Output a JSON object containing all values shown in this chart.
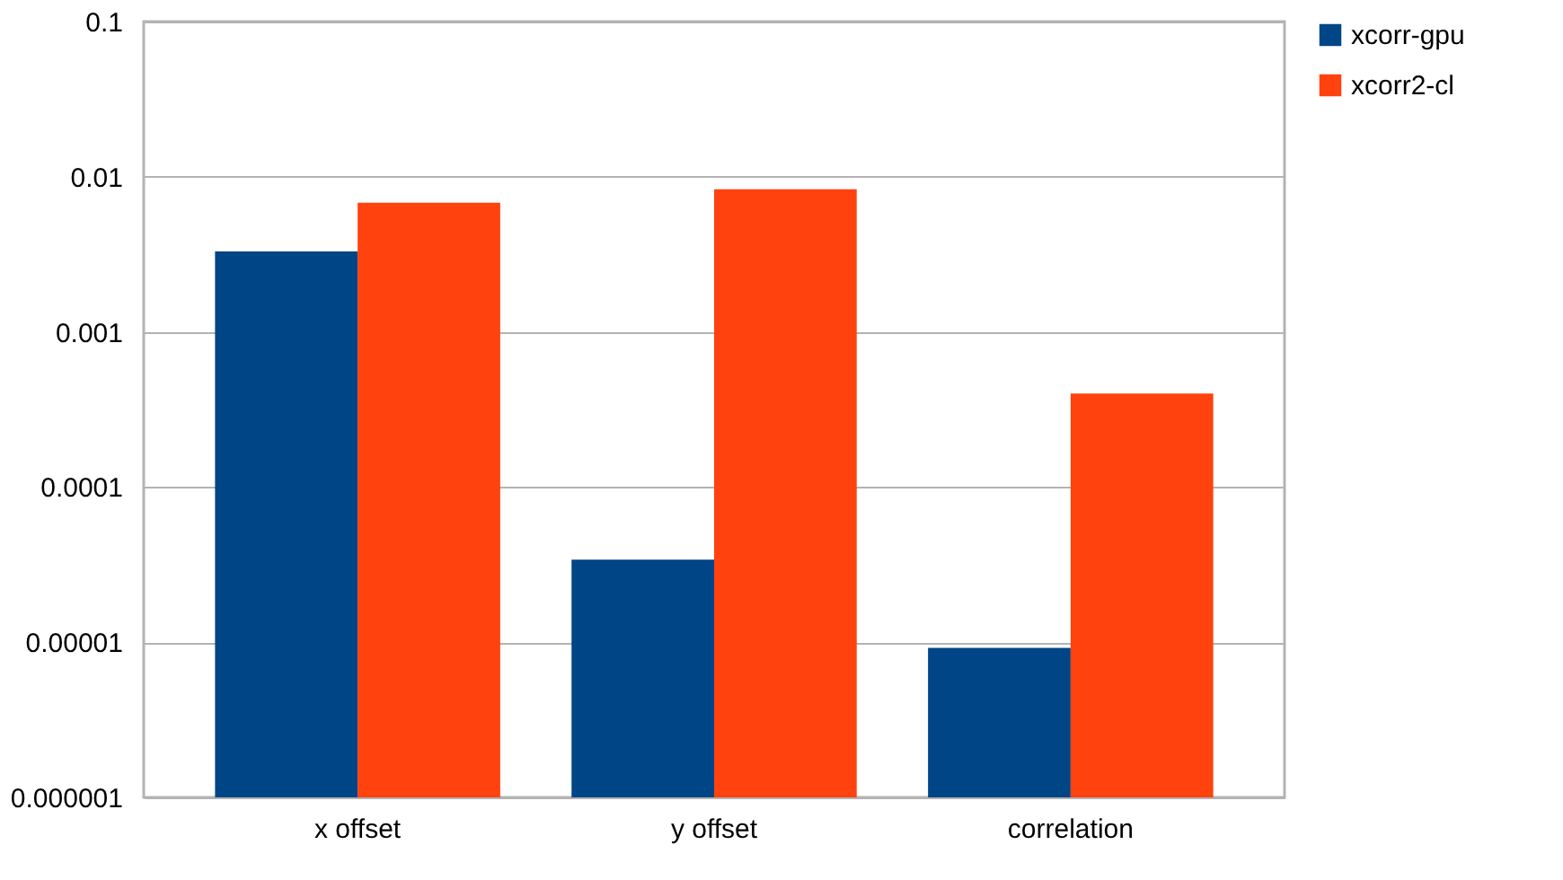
{
  "chart_data": {
    "type": "bar",
    "categories": [
      "x offset",
      "y offset",
      "correlation"
    ],
    "series": [
      {
        "name": "xcorr-gpu",
        "color": "#004586",
        "values": [
          0.0033,
          3.4e-05,
          9.2e-06
        ]
      },
      {
        "name": "xcorr2-cl",
        "color": "#ff420e",
        "values": [
          0.0068,
          0.0083,
          0.0004
        ]
      }
    ],
    "log": true,
    "ylim": [
      1e-06,
      0.1
    ],
    "yticks": [
      {
        "value": 1e-06,
        "label": "0.000001"
      },
      {
        "value": 1e-05,
        "label": "0.00001"
      },
      {
        "value": 0.0001,
        "label": "0.0001"
      },
      {
        "value": 0.001,
        "label": "0.001"
      },
      {
        "value": 0.01,
        "label": "0.01"
      },
      {
        "value": 0.1,
        "label": "0.1"
      }
    ],
    "grid": "y",
    "legend": "right"
  }
}
